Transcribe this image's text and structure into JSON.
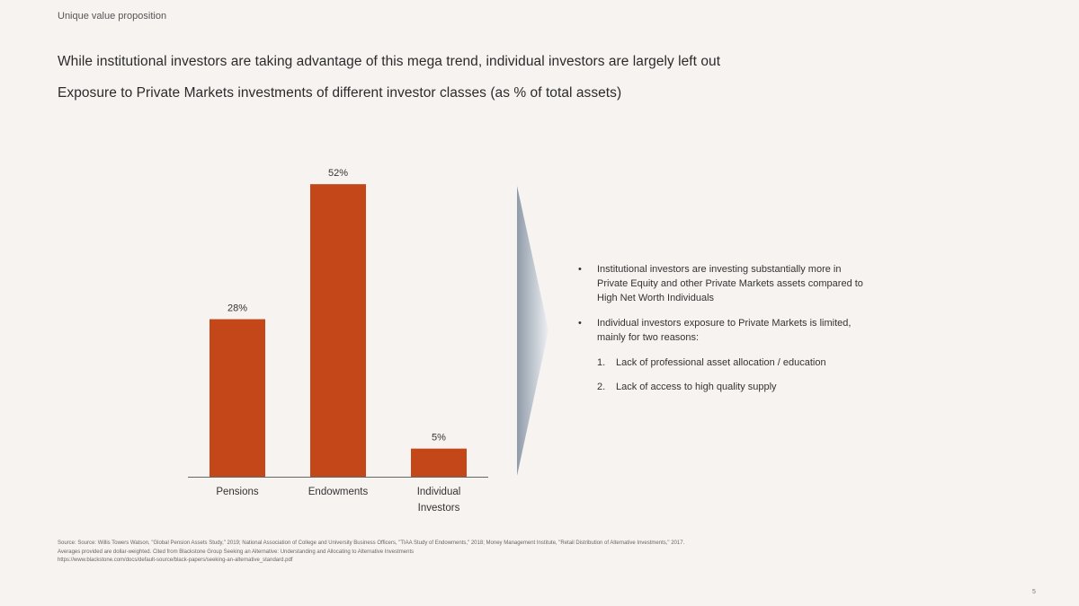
{
  "section_label": "Unique value proposition",
  "headline": "While institutional investors are taking advantage of this mega trend, individual investors are largely left out",
  "subheadline": "Exposure to Private Markets investments of different investor classes (as % of total assets)",
  "chart_data": {
    "type": "bar",
    "categories": [
      [
        "Pensions"
      ],
      [
        "Endowments"
      ],
      [
        "Individual",
        "Investors"
      ]
    ],
    "values": [
      28,
      52,
      5
    ],
    "value_labels": [
      "28%",
      "52%",
      "5%"
    ],
    "unit": "%",
    "ylim": [
      0,
      60
    ],
    "grid": false,
    "legend": "none",
    "bar_color": "#c4471a",
    "axis_color": "#666666"
  },
  "bullets": [
    {
      "text_lines": [
        "Institutional investors are investing substantially more in",
        "Private Equity and other Private Markets assets compared to",
        "High Net Worth Individuals"
      ]
    },
    {
      "text_lines": [
        "Individual investors exposure to Private Markets is limited,",
        "mainly for two reasons:"
      ]
    }
  ],
  "bullet_symbol": "•",
  "reasons": [
    {
      "number": "1.",
      "text": "Lack of professional asset allocation / education"
    },
    {
      "number": "2.",
      "text": "Lack of access to high quality supply"
    }
  ],
  "footnote": [
    "Source: Source: Willis Towers Watson, \"Global Pension Assets Study,\" 2019; National Association of College and University Business Officers, \"TIAA Study of Endowments,\" 2018; Money Management Institute, \"Retail Distribution of Alternative Investments,\" 2017.",
    "Averages provided are dollar-weighted. Cited from Blackstone Group Seeking an Alternative: Understanding and Allocating to Alternative Investments",
    "https://www.blackstone.com/docs/default-source/black-papers/seeking-an-alternative_standard.pdf"
  ],
  "page_number": "5",
  "colors": {
    "background": "#f7f3f1",
    "accent": "#c4471a",
    "chevron_dark": "#8f9aa8",
    "chevron_light": "#eef1f4"
  }
}
